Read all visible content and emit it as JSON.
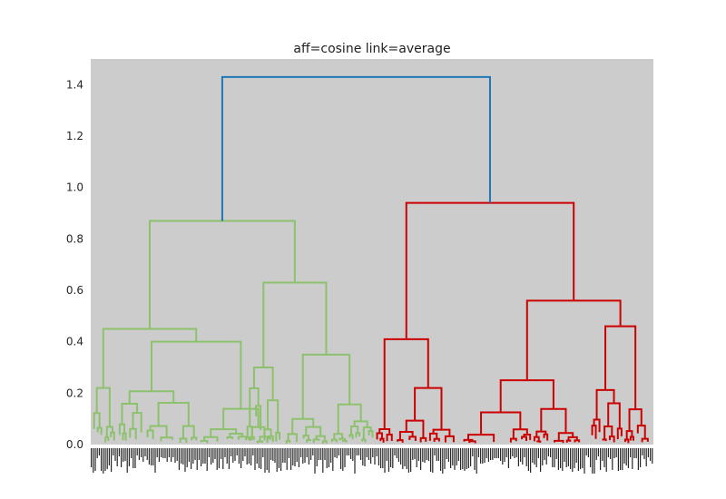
{
  "chart_data": {
    "type": "dendrogram",
    "title": "aff=cosine link=average",
    "xlabel": "",
    "ylabel": "",
    "ylim": [
      0,
      1.5
    ],
    "y_ticks": [
      0.0,
      0.2,
      0.4,
      0.6,
      0.8,
      1.0,
      1.2,
      1.4
    ],
    "y_tick_labels": [
      "0.0",
      "0.2",
      "0.4",
      "0.6",
      "0.8",
      "1.0",
      "1.2",
      "1.4"
    ],
    "grid": false,
    "background": "#cccccc",
    "x_tick_labels_legible": false,
    "colors": {
      "root": "#1f77b4",
      "cluster_1": "#8dc16d",
      "cluster_2": "#cc0000"
    },
    "clusters": [
      {
        "color": "cluster_1",
        "merge_height": 0.87,
        "subclusters": [
          {
            "merge_height": 0.45,
            "children_heights": [
              0.22,
              0.4
            ]
          },
          {
            "merge_height": 0.63,
            "children_heights": [
              0.3,
              0.35
            ]
          }
        ]
      },
      {
        "color": "cluster_2",
        "merge_height": 0.94,
        "subclusters": [
          {
            "merge_height": 0.41,
            "children_heights": [
              0.06,
              0.22
            ]
          },
          {
            "merge_height": 0.56,
            "children_heights": [
              0.25,
              0.46
            ]
          }
        ]
      }
    ],
    "root_merge_height": 1.43
  }
}
